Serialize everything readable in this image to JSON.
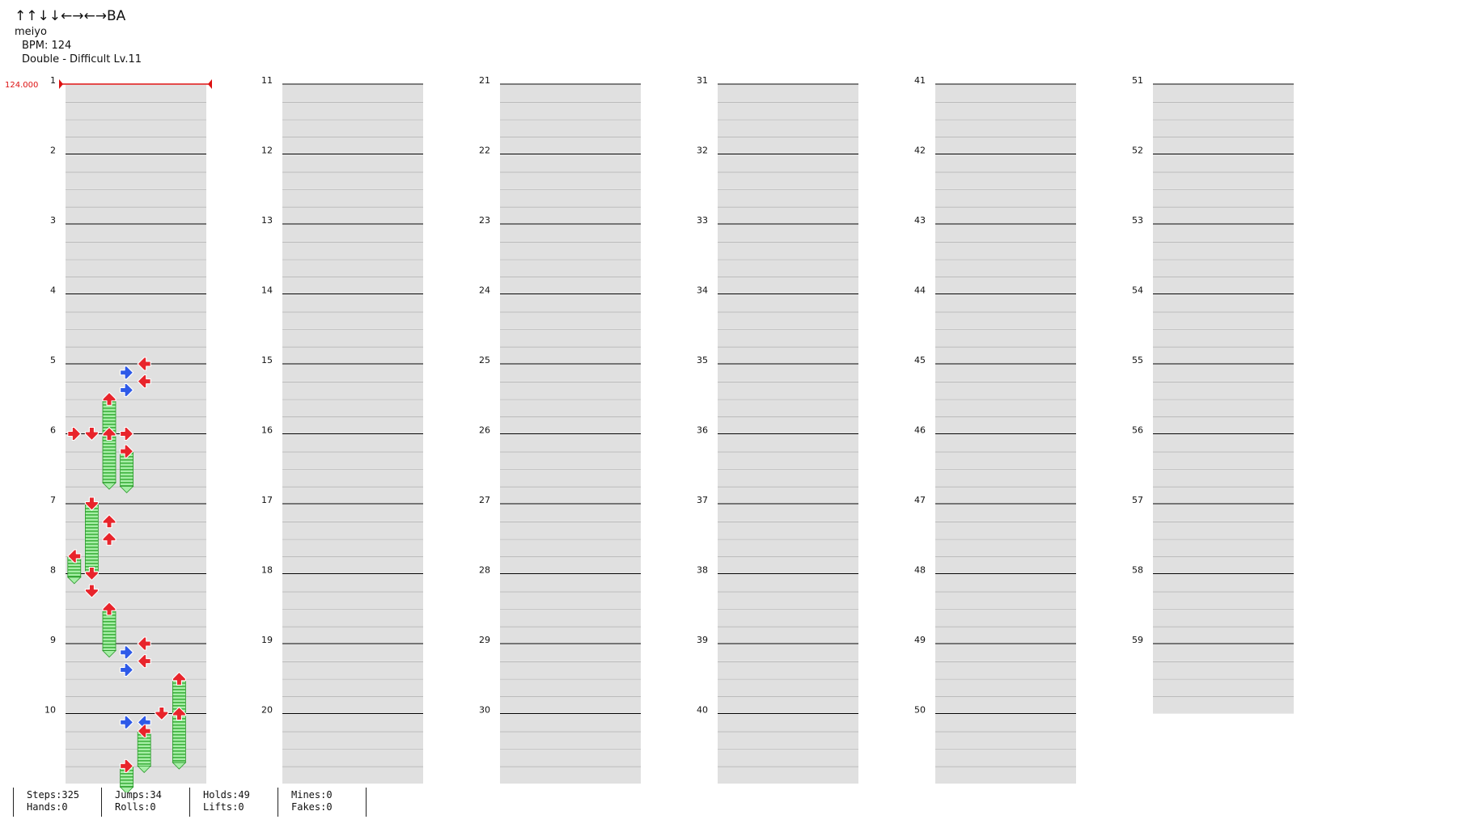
{
  "song": {
    "title": "↑↑↓↓←→←→BA",
    "artist": "meiyo",
    "bpm_text": "BPM: 124",
    "chart_text": "Double - Difficult Lv.11"
  },
  "bpm_marker": "124.000",
  "measure_labels": [
    "1",
    "2",
    "3",
    "4",
    "5",
    "6",
    "7",
    "8",
    "9",
    "10",
    "11",
    "12",
    "13",
    "14",
    "15",
    "16",
    "17",
    "18",
    "19",
    "20",
    "21",
    "22",
    "23",
    "24",
    "25",
    "26",
    "27",
    "28",
    "29",
    "30",
    "31",
    "32",
    "33",
    "34",
    "35",
    "36",
    "37",
    "38",
    "39",
    "40",
    "41",
    "42",
    "43",
    "44",
    "45",
    "46",
    "47",
    "48",
    "49",
    "50",
    "51",
    "52",
    "53",
    "54",
    "55",
    "56",
    "57",
    "58",
    "59"
  ],
  "stats": [
    [
      "Steps:325",
      "Hands:0"
    ],
    [
      "Jumps:34",
      "Rolls:0"
    ],
    [
      "Holds:49",
      "Lifts:0"
    ],
    [
      "Mines:0",
      "Fakes:0"
    ]
  ],
  "colors": {
    "quarter_note": "#e8242b",
    "eighth_note": "#2e5ae8",
    "hold_body": "#7ee07e",
    "band": "#e0e0e0",
    "measure_line": "#000000",
    "bpm_marker": "#dd1111"
  },
  "notes": [
    {
      "m": 5,
      "p": 0,
      "d": "left",
      "col": 4
    },
    {
      "m": 5,
      "p": 1,
      "d": "right",
      "col": 3
    },
    {
      "m": 5,
      "p": 2,
      "d": "left",
      "col": 4
    },
    {
      "m": 5,
      "p": 3,
      "d": "right",
      "col": 3
    },
    {
      "m": 5,
      "p": 4,
      "d": "up",
      "col": 2,
      "hold": 1.2
    },
    {
      "m": 6,
      "p": 0,
      "d": "right",
      "col": 0
    },
    {
      "m": 6,
      "p": 0,
      "d": "down",
      "col": 1
    },
    {
      "m": 6,
      "p": 0,
      "d": "up",
      "col": 2
    },
    {
      "m": 6,
      "p": 0,
      "d": "right",
      "col": 3
    },
    {
      "m": 6,
      "p": 2,
      "d": "right",
      "col": 3,
      "hold": 0.5
    },
    {
      "m": 7,
      "p": 0,
      "d": "down",
      "col": 1,
      "hold": 1.0
    },
    {
      "m": 7,
      "p": 2,
      "d": "up",
      "col": 2
    },
    {
      "m": 7,
      "p": 4,
      "d": "up",
      "col": 2
    },
    {
      "m": 7,
      "p": 6,
      "d": "left",
      "col": 0,
      "hold": 0.3
    },
    {
      "m": 8,
      "p": 0,
      "d": "down",
      "col": 1
    },
    {
      "m": 8,
      "p": 2,
      "d": "down",
      "col": 1
    },
    {
      "m": 8,
      "p": 4,
      "d": "up",
      "col": 2,
      "hold": 0.6
    },
    {
      "m": 9,
      "p": 0,
      "d": "left",
      "col": 4
    },
    {
      "m": 9,
      "p": 1,
      "d": "right",
      "col": 3
    },
    {
      "m": 9,
      "p": 2,
      "d": "left",
      "col": 4
    },
    {
      "m": 9,
      "p": 3,
      "d": "right",
      "col": 3
    },
    {
      "m": 9,
      "p": 4,
      "d": "up",
      "col": 6,
      "hold": 1.2
    },
    {
      "m": 10,
      "p": 0,
      "d": "down",
      "col": 5
    },
    {
      "m": 10,
      "p": 0,
      "d": "up",
      "col": 6
    },
    {
      "m": 10,
      "p": 1,
      "d": "right",
      "col": 3
    },
    {
      "m": 10,
      "p": 1,
      "d": "left",
      "col": 4
    },
    {
      "m": 10,
      "p": 2,
      "d": "left",
      "col": 4,
      "hold": 0.5
    },
    {
      "m": 10,
      "p": 6,
      "d": "right",
      "col": 3,
      "hold": 0.3
    }
  ]
}
